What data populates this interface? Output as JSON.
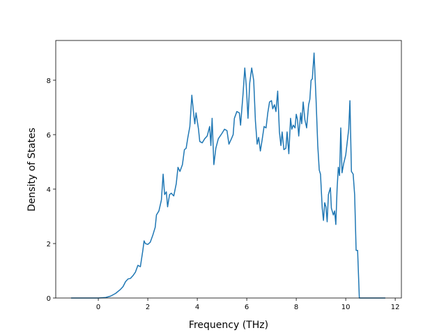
{
  "chart_data": {
    "type": "line",
    "xlabel": "Frequency (THz)",
    "ylabel": "Density of States",
    "xlim": [
      -1.72,
      12.25
    ],
    "ylim": [
      0,
      9.46
    ],
    "xticks": [
      0,
      2,
      4,
      6,
      8,
      10,
      12
    ],
    "yticks": [
      0,
      2,
      4,
      6,
      8
    ],
    "series": [
      {
        "color": "#1f77b4",
        "x": [
          -1.1,
          0,
          0.3,
          0.5,
          0.7,
          0.9,
          1.0,
          1.1,
          1.2,
          1.3,
          1.4,
          1.5,
          1.6,
          1.7,
          1.8,
          1.85,
          1.9,
          2.0,
          2.1,
          2.2,
          2.3,
          2.35,
          2.45,
          2.55,
          2.62,
          2.68,
          2.75,
          2.8,
          2.88,
          2.95,
          3.05,
          3.15,
          3.22,
          3.3,
          3.4,
          3.48,
          3.55,
          3.62,
          3.7,
          3.78,
          3.85,
          3.9,
          3.95,
          4.05,
          4.1,
          4.2,
          4.3,
          4.4,
          4.5,
          4.55,
          4.6,
          4.67,
          4.75,
          4.85,
          5.0,
          5.1,
          5.2,
          5.28,
          5.38,
          5.45,
          5.5,
          5.6,
          5.7,
          5.75,
          5.85,
          5.92,
          5.98,
          6.05,
          6.12,
          6.2,
          6.28,
          6.35,
          6.42,
          6.48,
          6.55,
          6.62,
          6.7,
          6.78,
          6.85,
          6.92,
          7.0,
          7.05,
          7.12,
          7.18,
          7.25,
          7.32,
          7.38,
          7.43,
          7.5,
          7.58,
          7.63,
          7.7,
          7.77,
          7.82,
          7.88,
          7.95,
          8.0,
          8.05,
          8.1,
          8.18,
          8.22,
          8.28,
          8.35,
          8.42,
          8.5,
          8.55,
          8.6,
          8.65,
          8.72,
          8.8,
          8.87,
          8.93,
          8.98,
          9.05,
          9.1,
          9.15,
          9.2,
          9.25,
          9.3,
          9.38,
          9.42,
          9.5,
          9.55,
          9.6,
          9.65,
          9.7,
          9.75,
          9.8,
          9.85,
          9.92,
          10.0,
          10.07,
          10.12,
          10.17,
          10.23,
          10.3,
          10.36,
          10.42,
          10.48,
          10.55,
          11.6
        ],
        "values": [
          0,
          0,
          0.02,
          0.07,
          0.17,
          0.32,
          0.42,
          0.6,
          0.7,
          0.72,
          0.82,
          0.95,
          1.2,
          1.15,
          1.75,
          2.1,
          2.0,
          1.97,
          2.05,
          2.3,
          2.6,
          3.05,
          3.2,
          3.6,
          4.55,
          3.8,
          3.9,
          3.35,
          3.8,
          3.85,
          3.75,
          4.2,
          4.8,
          4.65,
          4.9,
          5.45,
          5.5,
          5.9,
          6.3,
          7.45,
          6.8,
          6.4,
          6.8,
          6.2,
          5.75,
          5.7,
          5.85,
          5.95,
          6.3,
          5.6,
          6.6,
          4.9,
          5.5,
          5.85,
          6.05,
          6.2,
          6.15,
          5.65,
          5.85,
          6.0,
          6.6,
          6.85,
          6.8,
          6.35,
          7.5,
          8.45,
          7.8,
          6.6,
          7.9,
          8.45,
          8.0,
          6.5,
          5.65,
          5.9,
          5.4,
          5.8,
          6.3,
          6.25,
          6.8,
          7.2,
          7.25,
          6.95,
          7.1,
          6.85,
          7.6,
          6.1,
          5.6,
          6.1,
          5.45,
          5.5,
          6.1,
          5.3,
          6.6,
          6.2,
          6.35,
          6.25,
          6.75,
          6.55,
          5.95,
          6.8,
          6.4,
          7.2,
          6.55,
          6.25,
          7.1,
          7.3,
          8.0,
          8.05,
          9.0,
          7.3,
          5.6,
          4.7,
          4.55,
          3.3,
          2.85,
          3.5,
          3.35,
          2.8,
          3.8,
          4.05,
          3.3,
          3.05,
          3.2,
          2.7,
          4.0,
          4.8,
          4.5,
          6.25,
          4.6,
          4.95,
          5.25,
          5.8,
          6.2,
          7.25,
          4.65,
          4.55,
          3.8,
          1.75,
          1.75,
          0,
          0
        ]
      }
    ]
  }
}
